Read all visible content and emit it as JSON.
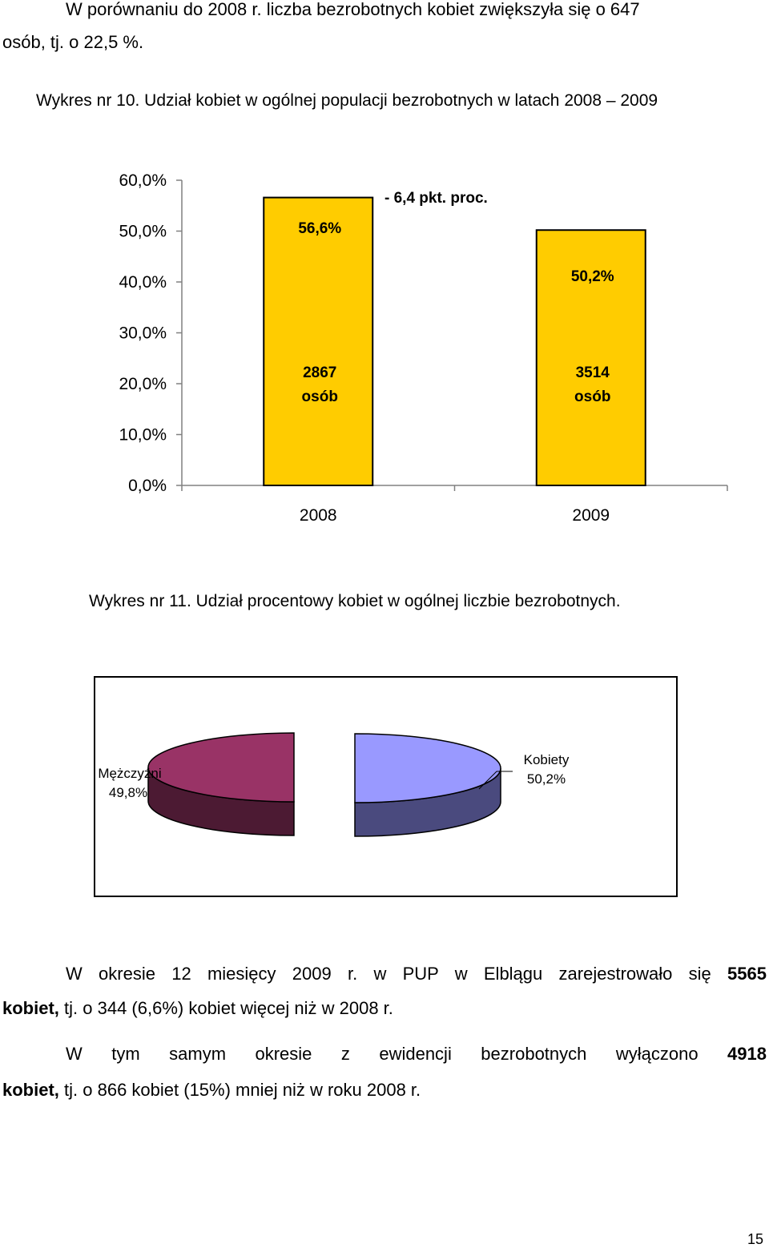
{
  "intro": {
    "line1": "W porównaniu do 2008 r. liczba bezrobotnych kobiet zwiększyła się o 647",
    "line2": "osób, tj. o 22,5 %."
  },
  "figure10": {
    "caption": "Wykres nr 10. Udział kobiet w ogólnej populacji bezrobotnych w latach 2008 – 2009"
  },
  "figure11": {
    "caption": "Wykres nr 11. Udział procentowy kobiet w ogólnej liczbie bezrobotnych."
  },
  "para2": {
    "line1_text": "W okresie 12 miesięcy 2009 r. w PUP w Elblągu zarejestrowało się",
    "line1_bold": "5565",
    "line2_bold": "kobiet,",
    "line2_text": "tj. o 344 (6,6%) kobiet więcej niż w 2008 r."
  },
  "para3": {
    "line1_text": "W tym samym okresie z ewidencji bezrobotnych wyłączono",
    "line1_bold": "4918",
    "line2_bold": "kobiet,",
    "line2_text": "tj. o 866 kobiet (15%) mniej niż w roku 2008 r."
  },
  "page_number": "15",
  "colors": {
    "bar_fill": "#ffcc00",
    "pie_women_top": "#9999ff",
    "pie_women_side": "#4a4a7e",
    "pie_men_top": "#993366",
    "pie_men_side": "#4c1a33"
  },
  "chart_data": [
    {
      "type": "bar",
      "categories": [
        "2008",
        "2009"
      ],
      "values": [
        56.6,
        50.2
      ],
      "value_labels": [
        "56,6%",
        "50,2%"
      ],
      "count_labels": [
        [
          "2867",
          "osób"
        ],
        [
          "3514",
          "osób"
        ]
      ],
      "annotation": "- 6,4 pkt. proc.",
      "yticks": [
        "0,0%",
        "10,0%",
        "20,0%",
        "30,0%",
        "40,0%",
        "50,0%",
        "60,0%"
      ],
      "ylim": [
        0,
        60
      ],
      "grid": false,
      "legend": "none"
    },
    {
      "type": "pie",
      "slices": [
        {
          "label": "Mężczyźni",
          "value_label": "49,8%",
          "value": 49.8
        },
        {
          "label": "Kobiety",
          "value_label": "50,2%",
          "value": 50.2
        }
      ],
      "style": "3d-exploded"
    }
  ]
}
